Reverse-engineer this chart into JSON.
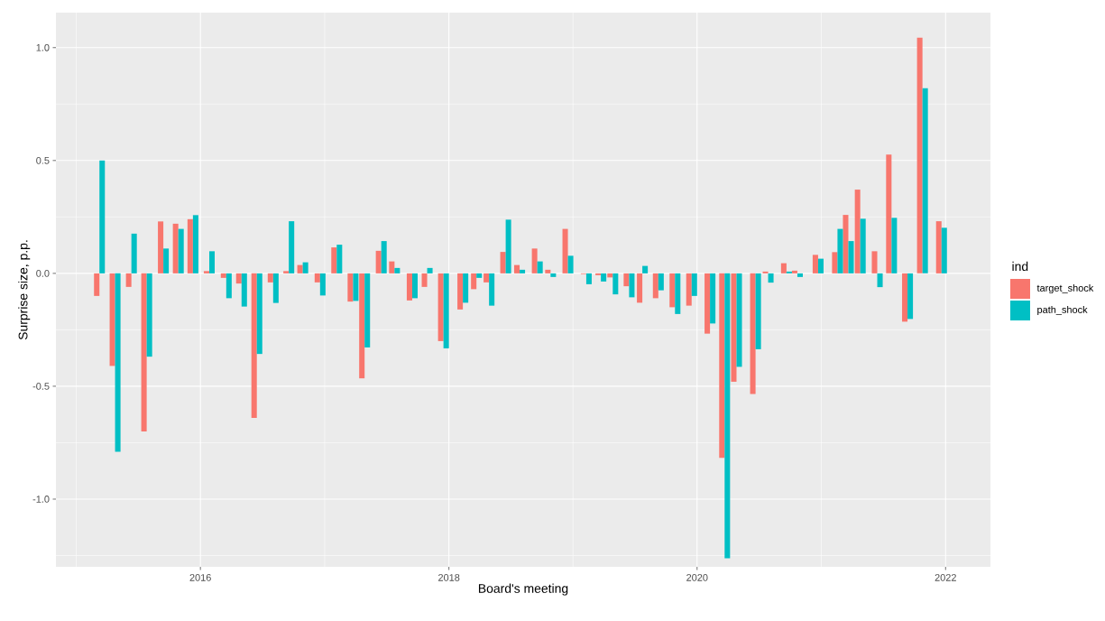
{
  "chart_data": {
    "type": "bar",
    "xlabel": "Board's meeting",
    "ylabel": "Surprise size, p.p.",
    "legend_title": "ind",
    "legend": "right",
    "grid": true,
    "x": [
      "2015-03-10",
      "2015-04-25",
      "2015-06-12",
      "2015-07-27",
      "2015-09-14",
      "2015-10-28",
      "2015-12-10",
      "2016-01-27",
      "2016-03-17",
      "2016-05-01",
      "2016-06-15",
      "2016-08-02",
      "2016-09-17",
      "2016-10-28",
      "2016-12-18",
      "2017-02-05",
      "2017-03-25",
      "2017-04-28",
      "2017-06-16",
      "2017-07-25",
      "2017-09-15",
      "2017-10-29",
      "2017-12-16",
      "2018-02-11",
      "2018-03-23",
      "2018-04-29",
      "2018-06-17",
      "2018-07-28",
      "2018-09-18",
      "2018-10-27",
      "2018-12-17",
      "2019-02-09",
      "2019-03-24",
      "2019-04-28",
      "2019-06-15",
      "2019-07-24",
      "2019-09-09",
      "2019-10-28",
      "2019-12-16",
      "2020-02-08",
      "2020-03-22",
      "2020-04-26",
      "2020-06-21",
      "2020-07-28",
      "2020-09-20",
      "2020-10-22",
      "2020-12-22",
      "2021-02-17",
      "2021-03-21",
      "2021-04-25",
      "2021-06-14",
      "2021-07-26",
      "2021-09-11",
      "2021-10-25",
      "2021-12-20"
    ],
    "series": [
      {
        "name": "target_shock",
        "color": "#f8766d",
        "values": [
          -0.1,
          -0.41,
          -0.06,
          -0.7,
          0.23,
          0.22,
          0.24,
          0.01,
          -0.02,
          -0.045,
          -0.64,
          -0.04,
          0.01,
          0.037,
          -0.04,
          0.115,
          -0.125,
          -0.465,
          0.1,
          0.053,
          -0.12,
          -0.06,
          -0.3,
          -0.16,
          -0.07,
          -0.04,
          0.095,
          0.037,
          0.11,
          0.016,
          0.197,
          -0.003,
          -0.008,
          -0.018,
          -0.057,
          -0.13,
          -0.11,
          -0.15,
          -0.143,
          -0.267,
          -0.817,
          -0.48,
          -0.534,
          0.008,
          0.045,
          0.012,
          0.082,
          0.094,
          0.259,
          0.371,
          0.098,
          0.526,
          -0.214,
          1.044,
          0.231
        ]
      },
      {
        "name": "path_shock",
        "color": "#00bfc4",
        "values": [
          0.5,
          -0.79,
          0.176,
          -0.369,
          0.11,
          0.197,
          0.258,
          0.098,
          -0.11,
          -0.147,
          -0.357,
          -0.131,
          0.231,
          0.049,
          -0.098,
          0.127,
          -0.122,
          -0.328,
          0.143,
          0.024,
          -0.11,
          0.024,
          -0.332,
          -0.13,
          -0.02,
          -0.143,
          0.238,
          0.016,
          0.053,
          -0.016,
          0.078,
          -0.048,
          -0.036,
          -0.093,
          -0.106,
          0.033,
          -0.075,
          -0.18,
          -0.1,
          -0.222,
          -1.262,
          -0.414,
          -0.336,
          -0.041,
          0.008,
          -0.016,
          0.065,
          0.197,
          0.143,
          0.242,
          -0.061,
          0.246,
          -0.202,
          0.82,
          0.202
        ]
      }
    ],
    "xlim": [
      "2014-11-02",
      "2022-05-13"
    ],
    "xticks": [
      "2016",
      "2018",
      "2020",
      "2022"
    ],
    "ylim": [
      -1.3,
      1.155
    ],
    "yticks": [
      {
        "value": -1,
        "label": "-1.0"
      },
      {
        "value": -0.5,
        "label": "-0.5"
      },
      {
        "value": 0,
        "label": "0.0"
      },
      {
        "value": 0.5,
        "label": "0.5"
      },
      {
        "value": 1,
        "label": "1.0"
      }
    ]
  }
}
